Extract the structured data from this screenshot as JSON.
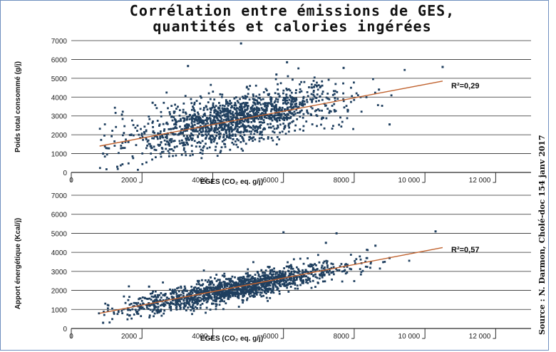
{
  "title": [
    "Corrélation entre émissions de GES,",
    "quantités et calories ingérées"
  ],
  "source": "Source : N. Darmon, Cholé-doc 154 janv 2017",
  "colors": {
    "points": "#1f3f5f",
    "trend": "#c0622e",
    "grid": "#2b2b2b",
    "border": "#6f8fbf"
  },
  "chart_data": [
    {
      "type": "scatter",
      "ylabel": "Poids total consommé (g/j)",
      "xlabel": "EGES (CO₂ eq. g/j)",
      "xlim": [
        0,
        13000
      ],
      "ylim": [
        0,
        7000
      ],
      "x_ticks": [
        0,
        2000,
        4000,
        6000,
        8000,
        10000,
        12000
      ],
      "x_tick_labels": [
        "0",
        "2000",
        "4000",
        "6000",
        "8000",
        "10 000",
        "12 000"
      ],
      "y_ticks": [
        0,
        1000,
        2000,
        3000,
        4000,
        5000,
        6000,
        7000
      ],
      "y_tick_labels": [
        "0",
        "1000",
        "2000",
        "3000",
        "4000",
        "5000",
        "6000",
        "7000"
      ],
      "grid": "horizontal",
      "annotation": "R²=0,29",
      "trendline": {
        "x": [
          800,
          10500
        ],
        "y": [
          1400,
          4850
        ]
      },
      "cloud": {
        "n": 1500,
        "x_center": 4600,
        "x_sd": 1500,
        "slope": 0.36,
        "intercept": 1100,
        "noise_sd": 650
      },
      "outliers": [
        {
          "x": 4800,
          "y": 6850
        },
        {
          "x": 6100,
          "y": 5850
        },
        {
          "x": 10500,
          "y": 5600
        },
        {
          "x": 3300,
          "y": 5650
        },
        {
          "x": 7700,
          "y": 5550
        },
        {
          "x": 900,
          "y": 1000
        },
        {
          "x": 1300,
          "y": 300
        },
        {
          "x": 9000,
          "y": 2550
        },
        {
          "x": 8700,
          "y": 4400
        },
        {
          "x": 5800,
          "y": 5200
        },
        {
          "x": 2300,
          "y": 3700
        }
      ]
    },
    {
      "type": "scatter",
      "ylabel": "Apport énergétique (Kcal/j)",
      "xlabel": "EGES (CO₂ eq. g/j)",
      "xlim": [
        0,
        13000
      ],
      "ylim": [
        0,
        7000
      ],
      "x_ticks": [
        0,
        2000,
        4000,
        6000,
        8000,
        10000,
        12000
      ],
      "x_tick_labels": [
        "0",
        "2000",
        "4000",
        "6000",
        "8000",
        "10 000",
        "12 000"
      ],
      "y_ticks": [
        0,
        1000,
        2000,
        3000,
        4000,
        5000,
        6000,
        7000
      ],
      "y_tick_labels": [
        "0",
        "1000",
        "2000",
        "3000",
        "4000",
        "5000",
        "6000",
        "7000"
      ],
      "grid": "horizontal",
      "annotation": "R²=0,57",
      "trendline": {
        "x": [
          800,
          10500
        ],
        "y": [
          800,
          4250
        ]
      },
      "cloud": {
        "n": 1500,
        "x_center": 4600,
        "x_sd": 1500,
        "slope": 0.36,
        "intercept": 450,
        "noise_sd": 330
      },
      "outliers": [
        {
          "x": 10300,
          "y": 5100
        },
        {
          "x": 6000,
          "y": 5050
        },
        {
          "x": 7500,
          "y": 5000
        },
        {
          "x": 7200,
          "y": 4500
        },
        {
          "x": 8600,
          "y": 4350
        },
        {
          "x": 900,
          "y": 300
        },
        {
          "x": 9000,
          "y": 3700
        },
        {
          "x": 2200,
          "y": 2200
        }
      ]
    }
  ]
}
